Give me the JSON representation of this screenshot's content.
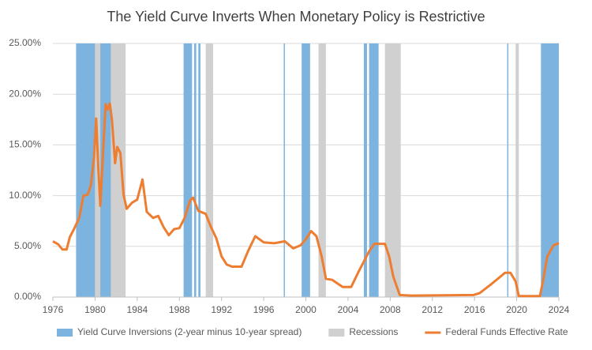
{
  "chart_data": {
    "type": "line",
    "title": "The Yield Curve Inverts When Monetary Policy is Restrictive",
    "xlim": [
      1976,
      2024
    ],
    "xticks": [
      1976,
      1980,
      1984,
      1988,
      1992,
      1996,
      2000,
      2004,
      2008,
      2012,
      2016,
      2020,
      2024
    ],
    "ylim": [
      0,
      25
    ],
    "yticks": [
      {
        "value": 0,
        "label": "0.00%"
      },
      {
        "value": 5,
        "label": "5.00%"
      },
      {
        "value": 10,
        "label": "10.00%"
      },
      {
        "value": 15,
        "label": "15.00%"
      },
      {
        "value": 20,
        "label": "20.00%"
      },
      {
        "value": 25,
        "label": "25.00%"
      }
    ],
    "grid": true,
    "legend": "bottom",
    "bands": [
      {
        "name": "Yield Curve Inversions (2-year minus 10-year spread)",
        "color": "#7db4df",
        "ranges": [
          [
            1978.2,
            1980.0
          ],
          [
            1980.2,
            1981.5
          ],
          [
            1981.7,
            1982.1
          ],
          [
            1988.4,
            1989.2
          ],
          [
            1989.4,
            1989.6
          ],
          [
            1989.8,
            1990.0
          ],
          [
            1997.9,
            1998.0
          ],
          [
            1999.6,
            2000.4
          ],
          [
            2005.5,
            2005.8
          ],
          [
            2006.0,
            2006.9
          ],
          [
            2019.1,
            2019.2
          ],
          [
            2022.3,
            2024.0
          ]
        ]
      },
      {
        "name": "Recessions",
        "color": "#d0d0d0",
        "ranges": [
          [
            1980.0,
            1980.5
          ],
          [
            1981.5,
            1982.9
          ],
          [
            1990.5,
            1991.2
          ],
          [
            2001.2,
            2001.9
          ],
          [
            2007.5,
            2009.0
          ],
          [
            2019.9,
            2020.2
          ]
        ]
      }
    ],
    "x": [
      1976.0,
      1976.5,
      1976.9,
      1977.3,
      1977.6,
      1978.0,
      1978.5,
      1978.9,
      1979.3,
      1979.6,
      1979.9,
      1980.1,
      1980.3,
      1980.5,
      1980.8,
      1981.0,
      1981.2,
      1981.4,
      1981.6,
      1981.9,
      1982.1,
      1982.4,
      1982.7,
      1983.0,
      1983.5,
      1984.0,
      1984.5,
      1984.9,
      1985.5,
      1986.0,
      1986.5,
      1987.0,
      1987.5,
      1988.0,
      1988.5,
      1989.0,
      1989.3,
      1989.8,
      1990.5,
      1991.0,
      1991.5,
      1992.0,
      1992.5,
      1993.0,
      1993.9,
      1994.5,
      1995.2,
      1996.0,
      1997.0,
      1998.0,
      1998.8,
      1999.5,
      2000.0,
      2000.5,
      2001.0,
      2001.5,
      2001.9,
      2002.5,
      2003.5,
      2004.3,
      2005.0,
      2006.0,
      2006.5,
      2007.5,
      2007.9,
      2008.3,
      2008.9,
      2010.0,
      2015.9,
      2016.5,
      2017.5,
      2018.9,
      2019.4,
      2019.9,
      2020.2,
      2022.2,
      2022.5,
      2022.9,
      2023.5,
      2024.0
    ],
    "series": [
      {
        "name": "Federal Funds Effective Rate",
        "color": "#ed7d31",
        "values": [
          5.5,
          5.2,
          4.7,
          4.7,
          5.9,
          6.7,
          7.8,
          10.0,
          10.1,
          11.0,
          13.8,
          17.6,
          13.0,
          9.0,
          15.0,
          19.0,
          18.5,
          19.1,
          17.5,
          13.2,
          14.8,
          14.2,
          10.1,
          8.7,
          9.3,
          9.6,
          11.6,
          8.4,
          7.8,
          8.0,
          6.9,
          6.1,
          6.7,
          6.8,
          7.8,
          9.5,
          9.8,
          8.5,
          8.2,
          6.9,
          5.8,
          4.0,
          3.2,
          3.0,
          3.0,
          4.5,
          6.0,
          5.4,
          5.3,
          5.5,
          4.8,
          5.1,
          5.7,
          6.5,
          6.0,
          4.0,
          1.8,
          1.7,
          1.0,
          1.0,
          2.5,
          4.5,
          5.25,
          5.25,
          4.0,
          2.0,
          0.2,
          0.15,
          0.2,
          0.4,
          1.2,
          2.4,
          2.4,
          1.55,
          0.1,
          0.1,
          1.6,
          4.0,
          5.1,
          5.33
        ]
      }
    ]
  }
}
